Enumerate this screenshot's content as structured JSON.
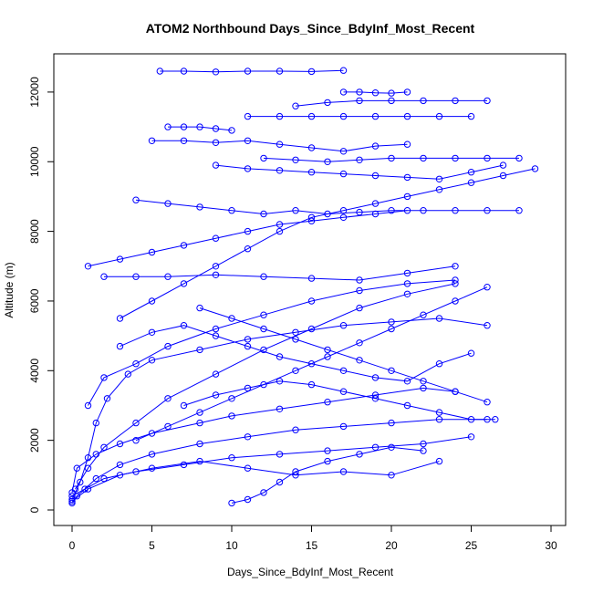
{
  "chart_data": {
    "type": "scatter",
    "title": "ATOM2 Northbound Days_Since_BdyInf_Most_Recent",
    "xlabel": "Days_Since_BdyInf_Most_Recent",
    "ylabel": "Altitude (m)",
    "xlim": [
      0,
      30
    ],
    "ylim": [
      0,
      12600
    ],
    "x_ticks": [
      0,
      5,
      10,
      15,
      20,
      25,
      30
    ],
    "y_ticks": [
      0,
      2000,
      4000,
      6000,
      8000,
      10000,
      12000
    ],
    "grid": false,
    "legend": "none",
    "series_color": "#0000ff",
    "marker": "open-circle",
    "connected": true,
    "series": [
      {
        "points": [
          [
            0,
            200
          ],
          [
            0.3,
            400
          ],
          [
            0.8,
            600
          ],
          [
            1.5,
            900
          ],
          [
            3,
            1300
          ],
          [
            5,
            1600
          ],
          [
            8,
            1900
          ],
          [
            11,
            2100
          ],
          [
            14,
            2300
          ],
          [
            17,
            2400
          ],
          [
            20,
            2500
          ],
          [
            23,
            2600
          ],
          [
            26,
            2600
          ]
        ]
      },
      {
        "points": [
          [
            0,
            300
          ],
          [
            0.5,
            800
          ],
          [
            1,
            1500
          ],
          [
            1.5,
            2500
          ],
          [
            2.2,
            3200
          ],
          [
            3.5,
            3900
          ],
          [
            5,
            4300
          ],
          [
            8,
            4600
          ],
          [
            11,
            4900
          ],
          [
            14,
            5100
          ],
          [
            17,
            5300
          ],
          [
            20,
            5400
          ],
          [
            23,
            5500
          ],
          [
            26,
            5300
          ]
        ]
      },
      {
        "points": [
          [
            0.2,
            600
          ],
          [
            1,
            1200
          ],
          [
            2,
            1800
          ],
          [
            4,
            2500
          ],
          [
            6,
            3200
          ],
          [
            9,
            3900
          ],
          [
            12,
            4600
          ],
          [
            15,
            5200
          ],
          [
            18,
            5800
          ],
          [
            21,
            6200
          ],
          [
            24,
            6500
          ]
        ]
      },
      {
        "points": [
          [
            0,
            400
          ],
          [
            2,
            900
          ],
          [
            4,
            1100
          ],
          [
            7,
            1300
          ],
          [
            10,
            1500
          ],
          [
            13,
            1600
          ],
          [
            16,
            1700
          ],
          [
            19,
            1800
          ],
          [
            22,
            1900
          ],
          [
            25,
            2100
          ]
        ]
      },
      {
        "points": [
          [
            0,
            250
          ],
          [
            1,
            600
          ],
          [
            3,
            1000
          ],
          [
            5,
            1200
          ],
          [
            8,
            1400
          ],
          [
            11,
            1200
          ],
          [
            14,
            1000
          ],
          [
            17,
            1100
          ],
          [
            20,
            1000
          ],
          [
            23,
            1400
          ]
        ]
      },
      {
        "points": [
          [
            1,
            3000
          ],
          [
            2,
            3800
          ],
          [
            4,
            4200
          ],
          [
            6,
            4700
          ],
          [
            9,
            5200
          ],
          [
            12,
            5600
          ],
          [
            15,
            6000
          ],
          [
            18,
            6300
          ],
          [
            21,
            6500
          ],
          [
            24,
            6600
          ]
        ]
      },
      {
        "points": [
          [
            2,
            6700
          ],
          [
            4,
            6700
          ],
          [
            6,
            6700
          ],
          [
            9,
            6750
          ],
          [
            12,
            6700
          ],
          [
            15,
            6650
          ],
          [
            18,
            6600
          ],
          [
            21,
            6800
          ],
          [
            24,
            7000
          ]
        ]
      },
      {
        "points": [
          [
            3,
            5500
          ],
          [
            5,
            6000
          ],
          [
            7,
            6500
          ],
          [
            9,
            7000
          ],
          [
            11,
            7500
          ],
          [
            13,
            8000
          ],
          [
            15,
            8400
          ],
          [
            17,
            8600
          ],
          [
            19,
            8800
          ],
          [
            21,
            9000
          ],
          [
            23,
            9200
          ],
          [
            25,
            9400
          ],
          [
            27,
            9600
          ],
          [
            29,
            9800
          ]
        ]
      },
      {
        "points": [
          [
            4,
            8900
          ],
          [
            6,
            8800
          ],
          [
            8,
            8700
          ],
          [
            10,
            8600
          ],
          [
            12,
            8500
          ],
          [
            14,
            8600
          ],
          [
            16,
            8500
          ],
          [
            18,
            8550
          ],
          [
            20,
            8600
          ],
          [
            22,
            8600
          ],
          [
            24,
            8600
          ],
          [
            26,
            8600
          ],
          [
            28,
            8600
          ]
        ]
      },
      {
        "points": [
          [
            5,
            10600
          ],
          [
            7,
            10600
          ],
          [
            9,
            10550
          ],
          [
            11,
            10600
          ],
          [
            13,
            10500
          ],
          [
            15,
            10400
          ],
          [
            17,
            10300
          ],
          [
            19,
            10450
          ],
          [
            21,
            10500
          ]
        ]
      },
      {
        "points": [
          [
            6,
            11000
          ],
          [
            7,
            11000
          ],
          [
            8,
            11000
          ],
          [
            9,
            10950
          ],
          [
            10,
            10900
          ]
        ]
      },
      {
        "points": [
          [
            5.5,
            12600
          ],
          [
            7,
            12600
          ],
          [
            9,
            12580
          ],
          [
            11,
            12600
          ],
          [
            13,
            12600
          ],
          [
            15,
            12590
          ],
          [
            17,
            12620
          ]
        ]
      },
      {
        "points": [
          [
            9,
            9900
          ],
          [
            11,
            9800
          ],
          [
            13,
            9750
          ],
          [
            15,
            9700
          ],
          [
            17,
            9650
          ],
          [
            19,
            9600
          ],
          [
            21,
            9550
          ],
          [
            23,
            9500
          ],
          [
            25,
            9700
          ],
          [
            27,
            9900
          ]
        ]
      },
      {
        "points": [
          [
            11,
            11300
          ],
          [
            13,
            11300
          ],
          [
            15,
            11300
          ],
          [
            17,
            11300
          ],
          [
            19,
            11300
          ],
          [
            21,
            11300
          ],
          [
            23,
            11300
          ],
          [
            25,
            11300
          ]
        ]
      },
      {
        "points": [
          [
            14,
            11600
          ],
          [
            16,
            11700
          ],
          [
            18,
            11750
          ],
          [
            20,
            11750
          ],
          [
            22,
            11750
          ],
          [
            24,
            11750
          ],
          [
            26,
            11750
          ]
        ]
      },
      {
        "points": [
          [
            17,
            12000
          ],
          [
            18,
            12000
          ],
          [
            19,
            11980
          ],
          [
            20,
            11970
          ],
          [
            21,
            12000
          ]
        ]
      },
      {
        "points": [
          [
            8,
            5800
          ],
          [
            10,
            5500
          ],
          [
            12,
            5200
          ],
          [
            14,
            4900
          ],
          [
            16,
            4600
          ],
          [
            18,
            4300
          ],
          [
            20,
            4000
          ],
          [
            22,
            3700
          ],
          [
            24,
            3400
          ],
          [
            26,
            3100
          ]
        ]
      },
      {
        "points": [
          [
            7,
            3000
          ],
          [
            9,
            3300
          ],
          [
            11,
            3500
          ],
          [
            13,
            3700
          ],
          [
            15,
            3600
          ],
          [
            17,
            3400
          ],
          [
            19,
            3200
          ],
          [
            21,
            3000
          ],
          [
            23,
            2800
          ],
          [
            25,
            2600
          ],
          [
            26.5,
            2600
          ]
        ]
      },
      {
        "points": [
          [
            10,
            200
          ],
          [
            11,
            300
          ],
          [
            12,
            500
          ],
          [
            13,
            800
          ],
          [
            14,
            1100
          ],
          [
            16,
            1400
          ],
          [
            18,
            1600
          ],
          [
            20,
            1800
          ],
          [
            22,
            1700
          ]
        ]
      },
      {
        "points": [
          [
            4,
            2000
          ],
          [
            6,
            2400
          ],
          [
            8,
            2800
          ],
          [
            10,
            3200
          ],
          [
            12,
            3600
          ],
          [
            14,
            4000
          ],
          [
            16,
            4400
          ],
          [
            18,
            4800
          ],
          [
            20,
            5200
          ],
          [
            22,
            5600
          ],
          [
            24,
            6000
          ],
          [
            26,
            6400
          ]
        ]
      },
      {
        "points": [
          [
            1,
            7000
          ],
          [
            3,
            7200
          ],
          [
            5,
            7400
          ],
          [
            7,
            7600
          ],
          [
            9,
            7800
          ],
          [
            11,
            8000
          ],
          [
            13,
            8200
          ],
          [
            15,
            8300
          ],
          [
            17,
            8400
          ],
          [
            19,
            8500
          ],
          [
            21,
            8600
          ]
        ]
      },
      {
        "points": [
          [
            12,
            10100
          ],
          [
            14,
            10050
          ],
          [
            16,
            10000
          ],
          [
            18,
            10050
          ],
          [
            20,
            10100
          ],
          [
            22,
            10100
          ],
          [
            24,
            10100
          ],
          [
            26,
            10100
          ],
          [
            28,
            10100
          ]
        ]
      },
      {
        "points": [
          [
            3,
            4700
          ],
          [
            5,
            5100
          ],
          [
            7,
            5300
          ],
          [
            9,
            5000
          ],
          [
            11,
            4700
          ],
          [
            13,
            4400
          ],
          [
            15,
            4200
          ],
          [
            17,
            4000
          ],
          [
            19,
            3800
          ],
          [
            21,
            3700
          ],
          [
            23,
            4200
          ],
          [
            25,
            4500
          ]
        ]
      },
      {
        "points": [
          [
            0,
            500
          ],
          [
            0.3,
            1200
          ],
          [
            1.5,
            1600
          ],
          [
            3,
            1900
          ],
          [
            5,
            2200
          ],
          [
            8,
            2500
          ],
          [
            10,
            2700
          ],
          [
            13,
            2900
          ],
          [
            16,
            3100
          ],
          [
            19,
            3300
          ],
          [
            22,
            3500
          ],
          [
            24,
            3400
          ]
        ]
      }
    ]
  }
}
